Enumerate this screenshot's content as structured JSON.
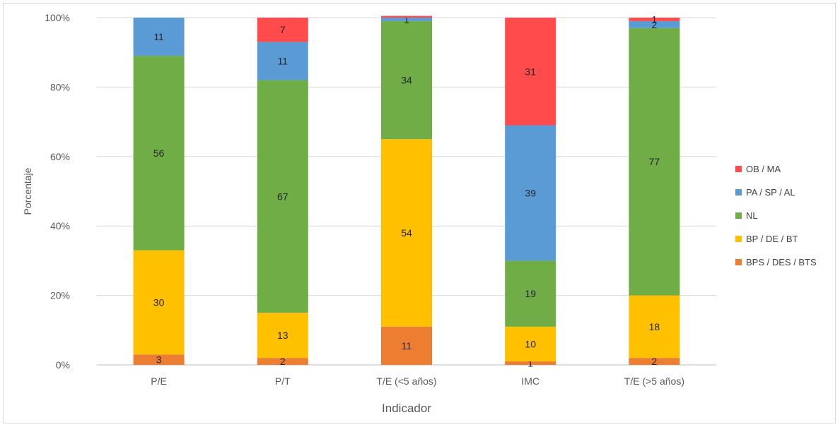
{
  "chart_data": {
    "type": "bar",
    "stacked": true,
    "xlabel": "Indicador",
    "ylabel": "Porcentaje",
    "ylim": [
      0,
      100
    ],
    "yticks": [
      "0%",
      "20%",
      "40%",
      "60%",
      "80%",
      "100%"
    ],
    "categories": [
      "P/E",
      "P/T",
      "T/E (<5 años)",
      "IMC",
      "T/E (>5 años)"
    ],
    "series": [
      {
        "name": "BPS / DES / BTS",
        "color": "#ed7d31",
        "values": [
          3,
          2,
          11,
          1,
          2
        ]
      },
      {
        "name": "BP / DE / BT",
        "color": "#ffc000",
        "values": [
          30,
          13,
          54,
          10,
          18
        ]
      },
      {
        "name": "NL",
        "color": "#70ad47",
        "values": [
          56,
          67,
          34,
          19,
          77
        ]
      },
      {
        "name": "PA / SP / AL",
        "color": "#5b9bd5",
        "values": [
          11,
          11,
          1,
          39,
          2
        ]
      },
      {
        "name": "OB / MA",
        "color": "#ff4b4b",
        "values": [
          0,
          7,
          0.5,
          31,
          1
        ]
      }
    ],
    "data_labels": [
      [
        "3",
        "2",
        "11",
        "1",
        "2"
      ],
      [
        "30",
        "13",
        "54",
        "10",
        "18"
      ],
      [
        "56",
        "67",
        "34",
        "19",
        "77"
      ],
      [
        "11",
        "11",
        "1",
        "39",
        "2"
      ],
      [
        "",
        "7",
        "",
        "31",
        "1"
      ]
    ],
    "legend_order": [
      "OB / MA",
      "PA / SP / AL",
      "NL",
      "BP / DE / BT",
      "BPS / DES / BTS"
    ],
    "legend_position": "right",
    "grid": true
  }
}
